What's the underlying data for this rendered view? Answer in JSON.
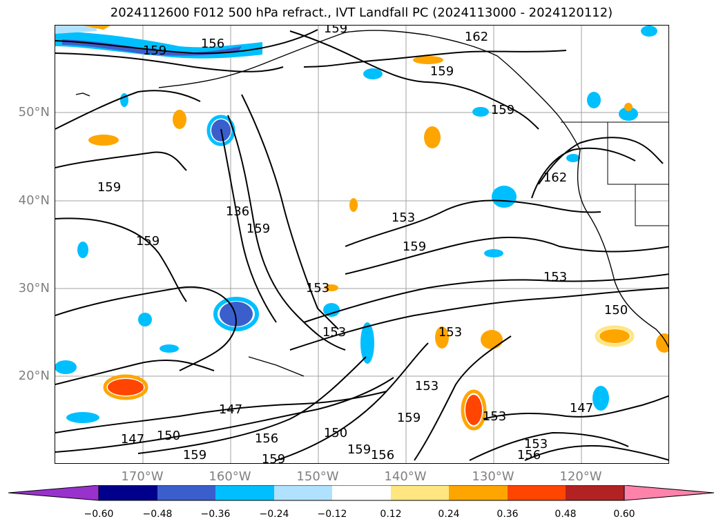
{
  "title": "2024112600 F012 500 hPa refract., IVT Landfall PC (2024113000 - 2024120112)",
  "lat_labels": [
    "50°N",
    "40°N",
    "30°N",
    "20°N"
  ],
  "lon_labels": [
    "170°W",
    "160°W",
    "150°W",
    "140°W",
    "130°W",
    "120°W"
  ],
  "colorbar": {
    "ticks": [
      "−0.60",
      "−0.48",
      "−0.36",
      "−0.24",
      "−0.12",
      "0.12",
      "0.24",
      "0.36",
      "0.48",
      "0.60"
    ],
    "colors": [
      "#9932cc",
      "#00008b",
      "#3a5fcd",
      "#00bfff",
      "#b0e2ff",
      "#ffffff",
      "#ffe680",
      "#ffa500",
      "#ff4500",
      "#b22222",
      "#ff82ab"
    ]
  },
  "contour_labels": [
    "159",
    "156",
    "162",
    "159",
    "159",
    "159",
    "162",
    "159",
    "136",
    "159",
    "153",
    "159",
    "159",
    "153",
    "153",
    "153",
    "153",
    "150",
    "153",
    "153",
    "147",
    "147",
    "150",
    "147",
    "156",
    "150",
    "159",
    "159",
    "156",
    "159",
    "153",
    "156",
    "159"
  ],
  "map_colors": {
    "contour": "#000000",
    "grid": "#a0a0a0",
    "coast": "#000000"
  }
}
